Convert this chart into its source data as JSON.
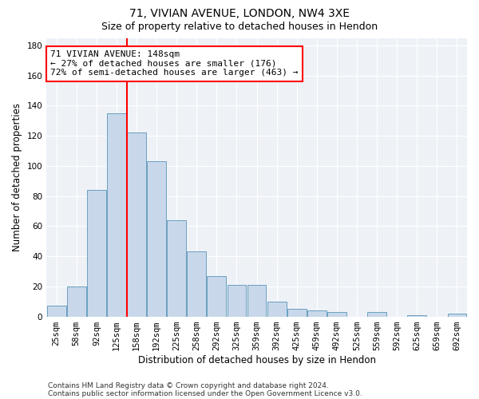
{
  "title_line1": "71, VIVIAN AVENUE, LONDON, NW4 3XE",
  "title_line2": "Size of property relative to detached houses in Hendon",
  "xlabel": "Distribution of detached houses by size in Hendon",
  "ylabel": "Number of detached properties",
  "bar_labels": [
    "25sqm",
    "58sqm",
    "92sqm",
    "125sqm",
    "158sqm",
    "192sqm",
    "225sqm",
    "258sqm",
    "292sqm",
    "325sqm",
    "359sqm",
    "392sqm",
    "425sqm",
    "459sqm",
    "492sqm",
    "525sqm",
    "559sqm",
    "592sqm",
    "625sqm",
    "659sqm",
    "692sqm"
  ],
  "bar_values": [
    7,
    20,
    84,
    135,
    122,
    103,
    64,
    43,
    27,
    21,
    21,
    10,
    5,
    4,
    3,
    0,
    3,
    0,
    1,
    0,
    2
  ],
  "bar_color": "#c8d8ea",
  "bar_edge_color": "#6a9fc0",
  "vline_color": "red",
  "vline_x": 3.5,
  "annotation_line1": "71 VIVIAN AVENUE: 148sqm",
  "annotation_line2": "← 27% of detached houses are smaller (176)",
  "annotation_line3": "72% of semi-detached houses are larger (463) →",
  "annotation_box_color": "white",
  "annotation_box_edge_color": "red",
  "ylim": [
    0,
    185
  ],
  "yticks": [
    0,
    20,
    40,
    60,
    80,
    100,
    120,
    140,
    160,
    180
  ],
  "footer_line1": "Contains HM Land Registry data © Crown copyright and database right 2024.",
  "footer_line2": "Contains public sector information licensed under the Open Government Licence v3.0.",
  "plot_bg_color": "#eef2f7",
  "title_fontsize": 10,
  "subtitle_fontsize": 9,
  "axis_label_fontsize": 8.5,
  "tick_fontsize": 7.5,
  "annotation_fontsize": 8,
  "footer_fontsize": 6.5
}
